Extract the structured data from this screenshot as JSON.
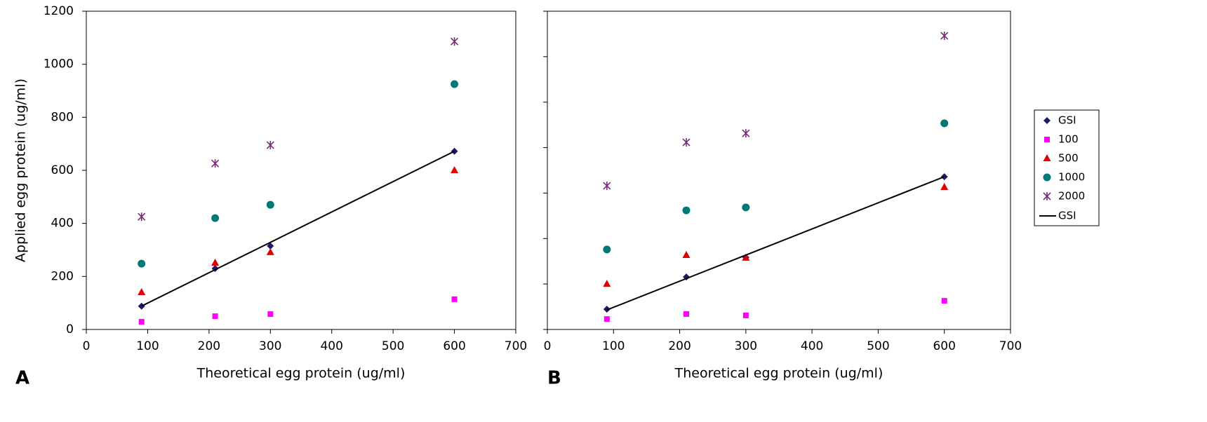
{
  "chart_data": [
    {
      "type": "scatter",
      "panel": "A",
      "xlabel": "Theoretical egg protein (ug/ml)",
      "ylabel": "Applied egg protein (ug/ml)",
      "x": [
        90,
        210,
        300,
        600
      ],
      "xlim": [
        0,
        700
      ],
      "xticks": [
        0,
        100,
        200,
        300,
        400,
        500,
        600,
        700
      ],
      "ylim": [
        0,
        1200
      ],
      "yticks": [
        0,
        200,
        400,
        600,
        800,
        1000,
        1200
      ],
      "ytick_labels": true,
      "series": [
        {
          "name": "GSI",
          "marker": "diamond",
          "color": "#1c1c66",
          "values": [
            88,
            230,
            315,
            672
          ]
        },
        {
          "name": "100",
          "marker": "square",
          "color": "#ff00ff",
          "values": [
            29,
            50,
            58,
            114
          ]
        },
        {
          "name": "500",
          "marker": "triangle",
          "color": "#e00000",
          "values": [
            140,
            251,
            291,
            600
          ]
        },
        {
          "name": "1000",
          "marker": "circle",
          "color": "#007878",
          "values": [
            248,
            420,
            470,
            925
          ]
        },
        {
          "name": "2000",
          "marker": "asterisk",
          "color": "#7a2a7a",
          "values": [
            425,
            626,
            695,
            1086
          ]
        },
        {
          "name": "GSI",
          "marker": "line",
          "color": "#000000",
          "x": [
            90,
            600
          ],
          "values": [
            88,
            672
          ]
        }
      ]
    },
    {
      "type": "scatter",
      "panel": "B",
      "xlabel": "Theoretical egg protein (ug/ml)",
      "x": [
        90,
        210,
        300,
        600
      ],
      "xlim": [
        0,
        700
      ],
      "xticks": [
        0,
        100,
        200,
        300,
        400,
        500,
        600,
        700
      ],
      "ylim": [
        0,
        1400
      ],
      "yticks": [
        0,
        200,
        400,
        600,
        800,
        1000,
        1200,
        1400
      ],
      "ytick_labels": false,
      "series": [
        {
          "marker": "diamond",
          "color": "#1c1c66",
          "values": [
            89,
            231,
            317,
            672
          ]
        },
        {
          "marker": "square",
          "color": "#ff00ff",
          "values": [
            46,
            68,
            62,
            126
          ]
        },
        {
          "marker": "triangle",
          "color": "#e00000",
          "values": [
            200,
            327,
            315,
            626
          ]
        },
        {
          "marker": "circle",
          "color": "#007878",
          "values": [
            352,
            524,
            537,
            907
          ]
        },
        {
          "marker": "asterisk",
          "color": "#7a2a7a",
          "values": [
            632,
            823,
            863,
            1292
          ]
        },
        {
          "marker": "line",
          "color": "#000000",
          "x": [
            90,
            600
          ],
          "values": [
            86,
            672
          ]
        }
      ]
    }
  ]
}
